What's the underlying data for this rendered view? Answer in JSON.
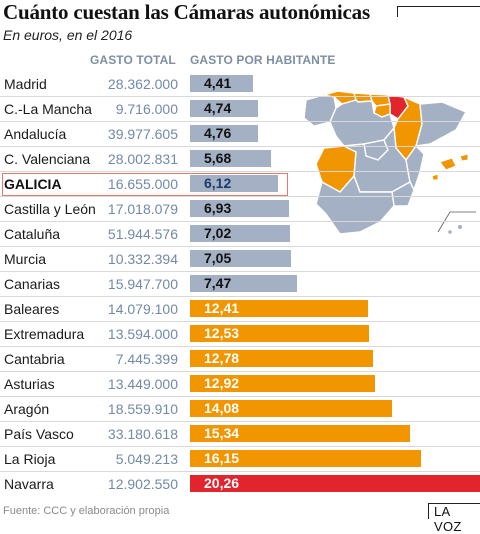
{
  "title": "Cuánto cuestan las Cámaras autonómicas",
  "subtitle": "En euros, en el 2016",
  "headers": {
    "total": "GASTO TOTAL",
    "per_capita": "GASTO POR HABITANTE"
  },
  "source": "Fuente: CCC y elaboración propia",
  "brand": "LA VOZ",
  "colors": {
    "low": "#a4b1c4",
    "high": "#f19500",
    "max": "#e2242d",
    "galicia_text": "#1b3c6e",
    "map_gray": "#a4b1c4",
    "map_orange": "#f19500",
    "map_red": "#e2242d"
  },
  "chart_data": {
    "type": "bar",
    "categories": [
      "Madrid",
      "C.-La Mancha",
      "Andalucía",
      "C. Valenciana",
      "GALICIA",
      "Castilla y León",
      "Cataluña",
      "Murcia",
      "Canarias",
      "Baleares",
      "Extremadura",
      "Cantabria",
      "Asturias",
      "Aragón",
      "País Vasco",
      "La Rioja",
      "Navarra"
    ],
    "total_spending": [
      "28.362.000",
      "9.716.000",
      "39.977.605",
      "28.002.831",
      "16.655.000",
      "17.018.079",
      "51.944.576",
      "10.332.394",
      "15.947.700",
      "14.079.100",
      "13.594.000",
      "7.445.399",
      "13.449.000",
      "18.559.910",
      "33.180.618",
      "5.049.213",
      "12.902.550"
    ],
    "per_capita_labels": [
      "4,41",
      "4,74",
      "4,76",
      "5,68",
      "6,12",
      "6,93",
      "7,02",
      "7,05",
      "7,47",
      "12,41",
      "12,53",
      "12,78",
      "12,92",
      "14,08",
      "15,34",
      "16,15",
      "20,26"
    ],
    "values": [
      4.41,
      4.74,
      4.76,
      5.68,
      6.12,
      6.93,
      7.02,
      7.05,
      7.47,
      12.41,
      12.53,
      12.78,
      12.92,
      14.08,
      15.34,
      16.15,
      20.26
    ],
    "groups": [
      "low",
      "low",
      "low",
      "low",
      "low",
      "low",
      "low",
      "low",
      "low",
      "high",
      "high",
      "high",
      "high",
      "high",
      "high",
      "high",
      "max"
    ],
    "highlighted": "GALICIA"
  }
}
